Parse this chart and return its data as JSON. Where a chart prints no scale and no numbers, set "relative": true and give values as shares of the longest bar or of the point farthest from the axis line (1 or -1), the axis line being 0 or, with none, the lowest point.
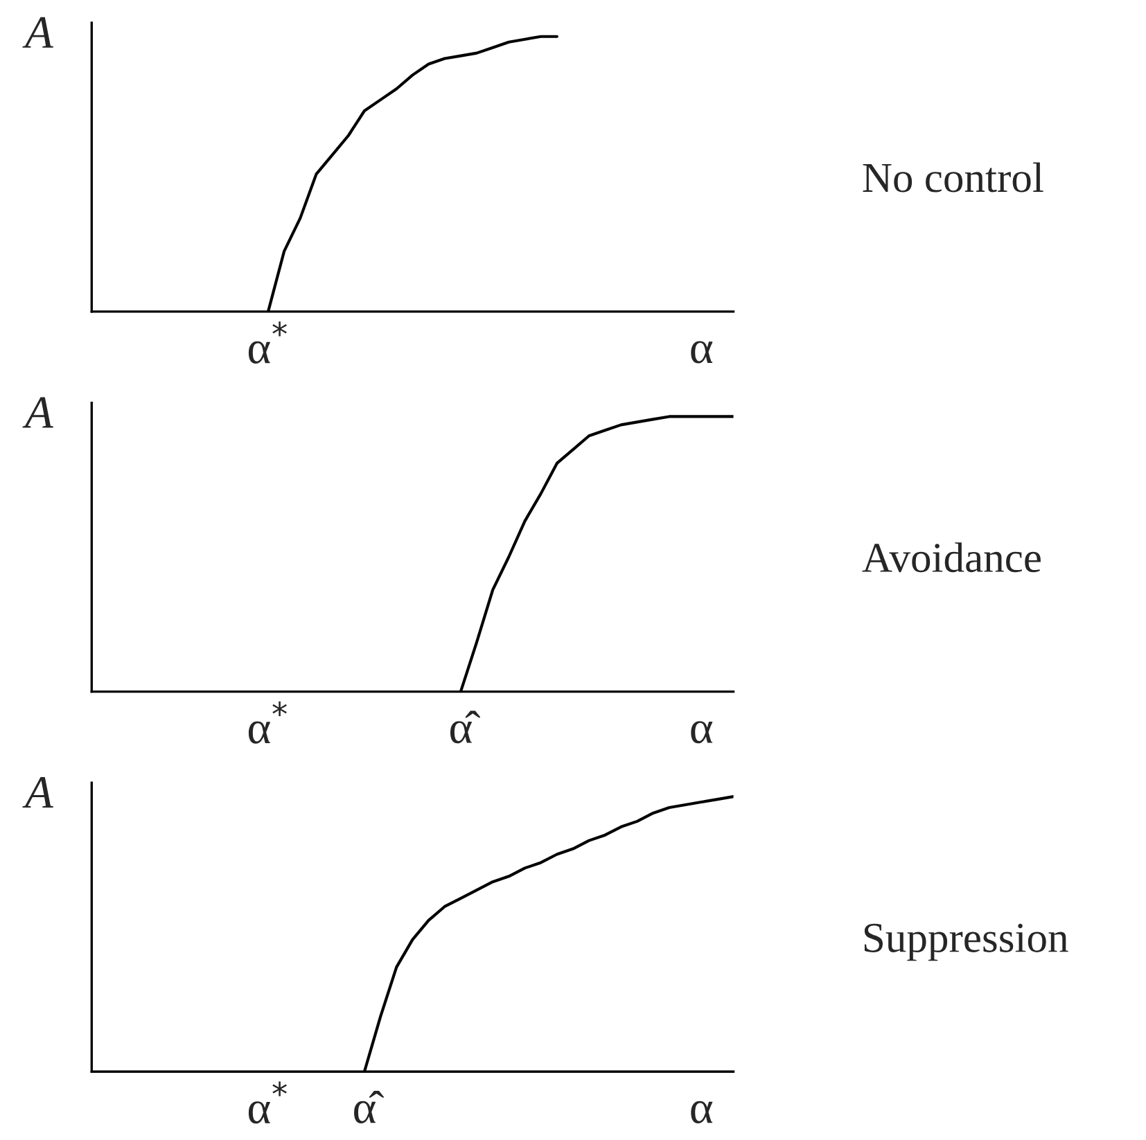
{
  "chart_data": [
    {
      "type": "line",
      "annotations": [
        "No control"
      ],
      "ylabel": "A",
      "relative": true,
      "tick_labels": "x",
      "categories": [
        null,
        null,
        null,
        null,
        null,
        null,
        null,
        null,
        null,
        null,
        null,
        "α$^{*}$",
        null,
        null,
        null,
        null,
        null,
        null,
        null,
        null,
        null,
        null,
        null,
        null,
        null,
        null,
        null,
        null,
        null,
        null,
        null,
        null,
        null,
        null,
        null,
        null,
        null,
        null,
        "α",
        null,
        null
      ],
      "series": [
        {
          "color": "#000000",
          "values": [
            null,
            null,
            null,
            null,
            null,
            null,
            null,
            null,
            null,
            null,
            null,
            0,
            0.22,
            0.34,
            0.5,
            0.57,
            0.64,
            0.73,
            0.77,
            0.81,
            0.86,
            0.9,
            0.92,
            0.93,
            0.94,
            0.96,
            0.98,
            0.99,
            1,
            1,
            null,
            null,
            null,
            null,
            null,
            null,
            null,
            null,
            null,
            null,
            null
          ]
        }
      ]
    },
    {
      "type": "line",
      "annotations": [
        "Avoidance"
      ],
      "ylabel": "A",
      "relative": true,
      "tick_labels": "x",
      "categories": [
        null,
        null,
        null,
        null,
        null,
        null,
        null,
        null,
        null,
        null,
        null,
        "α$^{*}$",
        null,
        null,
        null,
        null,
        null,
        null,
        null,
        null,
        null,
        null,
        null,
        "α̂",
        null,
        null,
        null,
        null,
        null,
        null,
        null,
        null,
        null,
        null,
        null,
        null,
        null,
        null,
        "α",
        null,
        null
      ],
      "series": [
        {
          "color": "#000000",
          "values": [
            null,
            null,
            null,
            null,
            null,
            null,
            null,
            null,
            null,
            null,
            null,
            null,
            null,
            null,
            null,
            null,
            null,
            null,
            null,
            null,
            null,
            null,
            null,
            0,
            0.18,
            0.37,
            0.49,
            0.62,
            0.72,
            0.83,
            0.88,
            0.93,
            0.95,
            0.97,
            0.98,
            0.99,
            1,
            1,
            1,
            1,
            1
          ]
        }
      ]
    },
    {
      "type": "line",
      "annotations": [
        "Suppression"
      ],
      "ylabel": "A",
      "relative": true,
      "tick_labels": "x",
      "categories": [
        null,
        null,
        null,
        null,
        null,
        null,
        null,
        null,
        null,
        null,
        null,
        "α$^{*}$",
        null,
        null,
        null,
        null,
        null,
        "α̂",
        null,
        null,
        null,
        null,
        null,
        null,
        null,
        null,
        null,
        null,
        null,
        null,
        null,
        null,
        null,
        null,
        null,
        null,
        null,
        null,
        "α",
        null,
        null
      ],
      "series": [
        {
          "color": "#000000",
          "values": [
            null,
            null,
            null,
            null,
            null,
            null,
            null,
            null,
            null,
            null,
            null,
            null,
            null,
            null,
            null,
            null,
            null,
            0,
            0.2,
            0.38,
            0.48,
            0.55,
            0.6,
            0.63,
            0.66,
            0.69,
            0.71,
            0.74,
            0.76,
            0.79,
            0.81,
            0.84,
            0.86,
            0.89,
            0.91,
            0.94,
            0.96,
            0.97,
            0.98,
            0.99,
            1
          ]
        }
      ]
    }
  ]
}
